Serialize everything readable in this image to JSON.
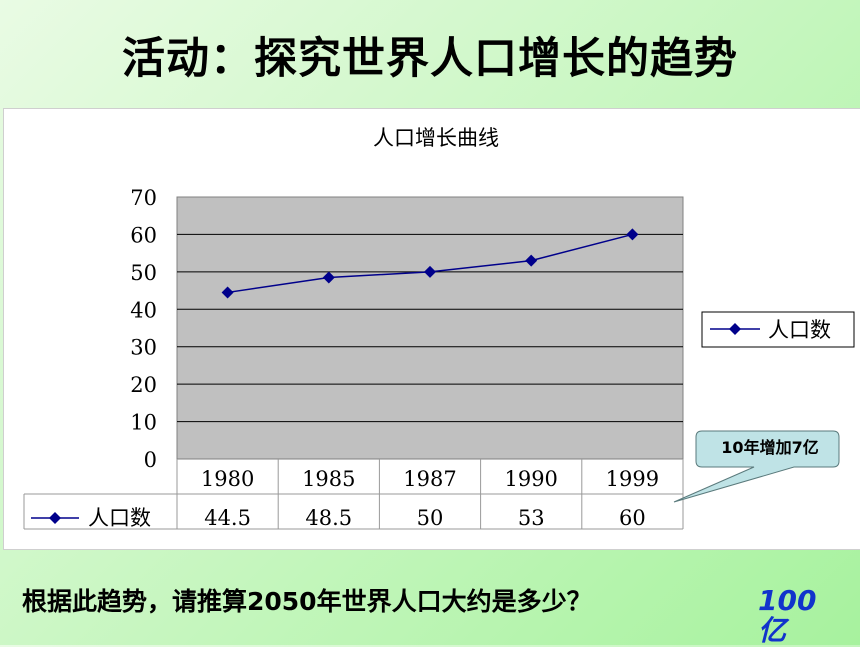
{
  "slide": {
    "title": "活动：探究世界人口增长的趋势",
    "question": "根据此趋势，请推算2050年世界人口大约是多少？",
    "answer": "100亿"
  },
  "callout": {
    "text": "10年增加7亿"
  },
  "chart_data": {
    "type": "line",
    "title": "人口增长曲线",
    "categories": [
      "1980",
      "1985",
      "1987",
      "1990",
      "1999"
    ],
    "series": [
      {
        "name": "人口数",
        "values": [
          44.5,
          48.5,
          50,
          53,
          60
        ],
        "color": "#00008b"
      }
    ],
    "table_values": [
      "44.5",
      "48.5",
      "50",
      "53",
      "60"
    ],
    "ylim": [
      0,
      70
    ],
    "yticks": [
      0,
      10,
      20,
      30,
      40,
      50,
      60,
      70
    ],
    "grid": true,
    "legend": "right",
    "data_table": true,
    "plot_background": "#c0c0c0"
  }
}
